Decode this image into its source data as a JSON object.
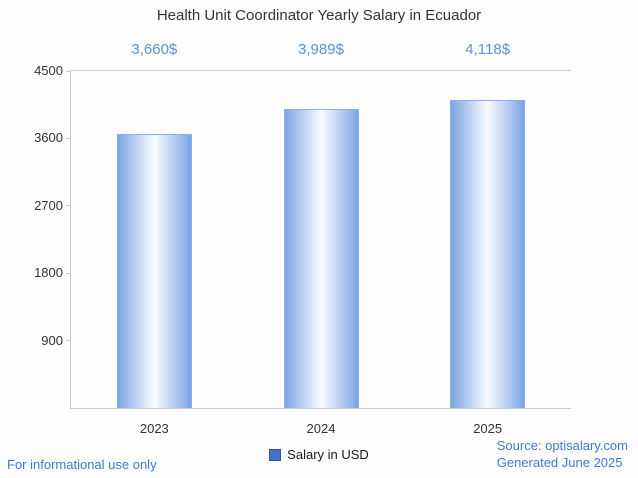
{
  "chart_data": {
    "type": "bar",
    "title": "Health Unit Coordinator Yearly Salary in Ecuador",
    "categories": [
      "2023",
      "2024",
      "2025"
    ],
    "series": [
      {
        "name": "Salary in USD",
        "values": [
          3660,
          3989,
          4118
        ]
      }
    ],
    "value_labels": [
      "3,660$",
      "3,989$",
      "4,118$"
    ],
    "ylim": [
      0,
      4500
    ],
    "yticks": [
      900,
      1800,
      2700,
      3600,
      4500
    ],
    "grid": false,
    "legend_position": "bottom"
  },
  "legend": {
    "label": "Salary in USD"
  },
  "footer": {
    "disclaimer": "For informational use only",
    "source": "Source: optisalary.com",
    "generated": "Generated June 2025"
  },
  "colors": {
    "bar_edge": "#7ca4e4",
    "bar_center": "#fbfdff",
    "value_label": "#5894d4",
    "footer_text": "#3d7bd0",
    "axis_line": "#c9c9c9",
    "text": "#333333",
    "legend_swatch": "#4472c4"
  }
}
